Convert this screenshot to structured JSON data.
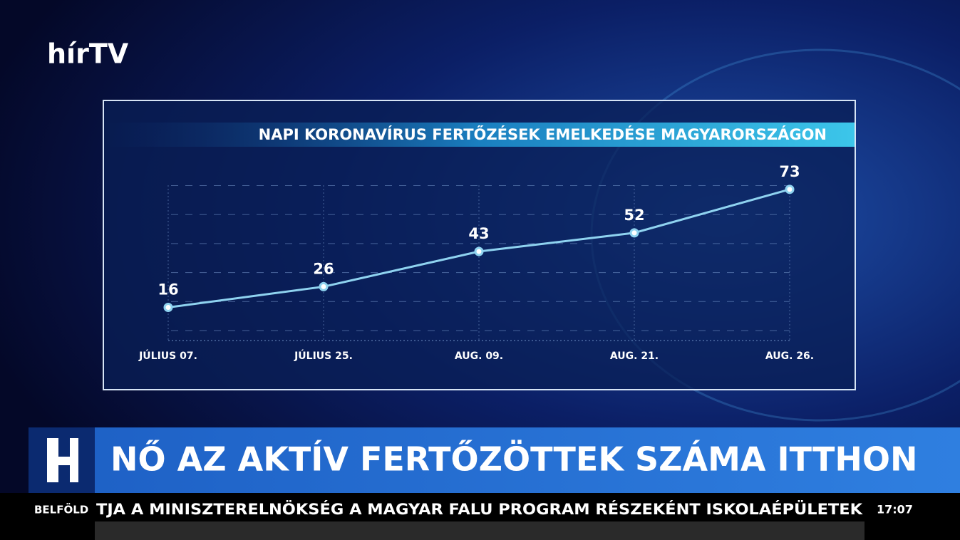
{
  "logo": "hírTV",
  "chart_data": {
    "type": "line",
    "title": "NAPI KORONAVÍRUS FERTŐZÉSEK EMELKEDÉSE MAGYARORSZÁGON",
    "categories": [
      "JÚLIUS 07.",
      "JÚLIUS 25.",
      "AUG. 09.",
      "AUG. 21.",
      "AUG. 26."
    ],
    "values": [
      16,
      26,
      43,
      52,
      73
    ],
    "color": "#8fd3f0",
    "ylim": [
      0,
      75
    ]
  },
  "headline": "NŐ AZ AKTÍV FERTŐZÖTTEK SZÁMA ITTHON",
  "ticker": {
    "section": "BELFÖLD",
    "text": "TJA A MINISZTERELNÖKSÉG A MAGYAR FALU PROGRAM RÉSZEKÉNT ISKOLAÉPÜLETEK",
    "time": "17:07"
  }
}
